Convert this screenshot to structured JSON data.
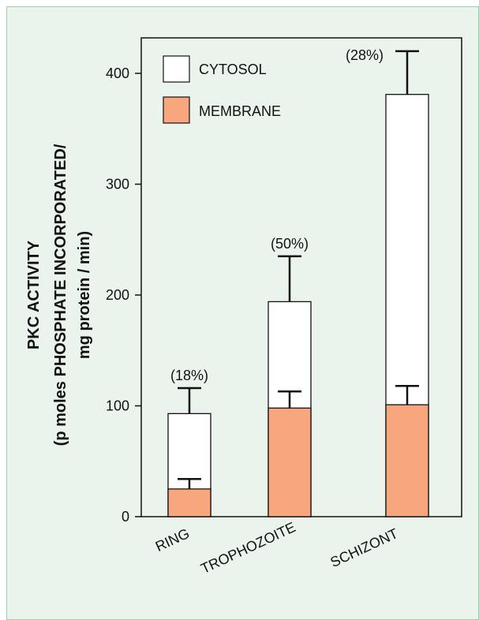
{
  "chart_data": {
    "type": "bar",
    "stacked": true,
    "categories": [
      "RING",
      "TROPHOZOITE",
      "SCHIZONT"
    ],
    "series": [
      {
        "name": "MEMBRANE",
        "values": [
          25,
          98,
          101
        ],
        "error": [
          9,
          15,
          17
        ],
        "color": "#f7a67d"
      },
      {
        "name": "CYTOSOL",
        "values": [
          68,
          96,
          280
        ],
        "totals": [
          93,
          194,
          381
        ],
        "error": [
          23,
          41,
          39
        ],
        "color": "#ffffff"
      }
    ],
    "annotations": [
      "(18%)",
      "(50%)",
      "(28%)"
    ],
    "ylabel_lines": [
      "PKC ACTIVITY",
      "(p moles PHOSPHATE INCORPORATED/",
      "mg protein / min)"
    ],
    "yticks": [
      "0",
      "100",
      "200",
      "300",
      "400"
    ],
    "ylim": [
      0,
      430
    ],
    "grid": false,
    "legend_position": "top-left"
  }
}
